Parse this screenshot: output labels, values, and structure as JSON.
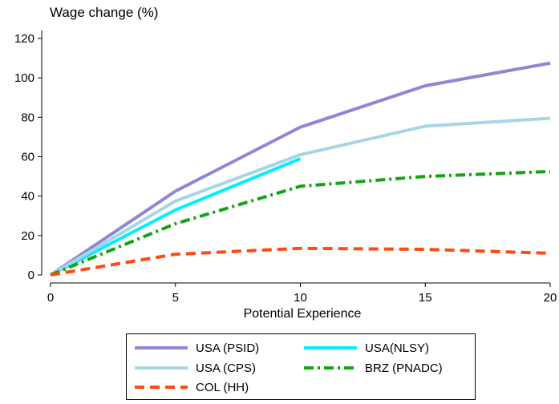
{
  "chart_data": {
    "type": "line",
    "ylabel": "Wage change (%)",
    "xlabel": "Potential Experience",
    "x_ticks": [
      "0",
      "5",
      "10",
      "15",
      "20"
    ],
    "y_ticks": [
      "0",
      "20",
      "40",
      "60",
      "80",
      "100",
      "120"
    ],
    "xlim": [
      0,
      20
    ],
    "ylim": [
      0,
      120
    ],
    "legend_placement": "bottom",
    "series": [
      {
        "name": "USA (PSID)",
        "x": [
          0,
          5,
          10,
          15,
          20
        ],
        "values": [
          0,
          42.5,
          75,
          96,
          107.5
        ],
        "color": "#8e87d4",
        "style": "solid"
      },
      {
        "name": "USA(NLSY)",
        "x": [
          0,
          5,
          10
        ],
        "values": [
          0,
          33,
          59
        ],
        "color": "#00f0ff",
        "style": "solid"
      },
      {
        "name": "USA (CPS)",
        "x": [
          0,
          5,
          10,
          15,
          20
        ],
        "values": [
          0,
          37.5,
          61,
          75.5,
          79.5
        ],
        "color": "#a6d6e6",
        "style": "solid"
      },
      {
        "name": "BRZ (PNADC)",
        "x": [
          0,
          5,
          10,
          15,
          20
        ],
        "values": [
          0,
          26,
          45,
          50,
          52.5
        ],
        "color": "#13a413",
        "style": "dashdot"
      },
      {
        "name": "COL (HH)",
        "x": [
          0,
          5,
          10,
          15,
          20
        ],
        "values": [
          0,
          10.5,
          13.5,
          13,
          11
        ],
        "color": "#ff4a12",
        "style": "dash"
      }
    ]
  }
}
